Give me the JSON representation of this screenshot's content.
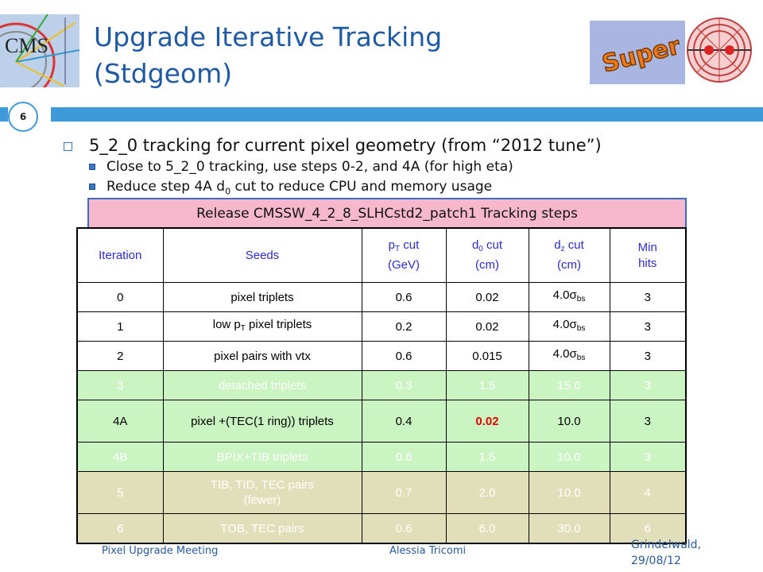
{
  "title": {
    "line1": "Upgrade Iterative Tracking",
    "line2": "(Stdgeom)"
  },
  "logos": {
    "cms_text": "CMS",
    "super_text": "Super"
  },
  "slide_number": "6",
  "bullets": {
    "main": "5_2_0 tracking for current pixel geometry (from “2012 tune”)",
    "sub1": "Close to 5_2_0 tracking, use steps 0-2, and 4A (for high eta)",
    "sub2_pre": "Reduce step 4A d",
    "sub2_sub": "0",
    "sub2_post": " cut to reduce CPU and memory usage"
  },
  "release_banner": "Release CMSSW_4_2_8_SLHCstd2_patch1 Tracking steps",
  "table": {
    "headers": {
      "iteration": "Iteration",
      "seeds": "Seeds",
      "pt_pre": "p",
      "pt_sub": "T",
      "pt_post": " cut",
      "pt_unit": "(GeV)",
      "d0_pre": "d",
      "d0_sub": "0",
      "d0_post": " cut",
      "d0_unit": "(cm)",
      "dz_pre": "d",
      "dz_sub": "z",
      "dz_post": " cut",
      "dz_unit": "(cm)",
      "min": "Min",
      "hits": "hits"
    },
    "rows": [
      {
        "iter": "0",
        "seeds": "pixel triplets",
        "pt": "0.6",
        "d0": "0.02",
        "dz": "4.0σ",
        "dz_sub": "bs",
        "hits": "3"
      },
      {
        "iter": "1",
        "seeds_pre": "low p",
        "seeds_sub": "T",
        "seeds_post": " pixel triplets",
        "pt": "0.2",
        "d0": "0.02",
        "dz": "4.0σ",
        "dz_sub": "bs",
        "hits": "3"
      },
      {
        "iter": "2",
        "seeds": "pixel pairs with vtx",
        "pt": "0.6",
        "d0": "0.015",
        "dz": "4.0σ",
        "dz_sub": "bs",
        "hits": "3"
      },
      {
        "iter": "3",
        "seeds": "detached triplets",
        "pt": "0.3",
        "d0": "1.5",
        "dz": "15.0",
        "hits": "3"
      },
      {
        "iter": "4A",
        "seeds": "pixel +(TEC(1 ring)) triplets",
        "pt": "0.4",
        "d0": "0.02",
        "dz": "10.0",
        "hits": "3"
      },
      {
        "iter": "4B",
        "seeds": "BPIX+TIB triplets",
        "pt": "0.6",
        "d0": "1.5",
        "dz": "10.0",
        "hits": "3"
      },
      {
        "iter": "5",
        "seeds": "TIB, TID, TEC pairs (fewer)",
        "pt": "0.7",
        "d0": "2.0",
        "dz": "10.0",
        "hits": "4"
      },
      {
        "iter": "6",
        "seeds": "TOB, TEC pairs",
        "pt": "0.6",
        "d0": "6.0",
        "dz": "30.0",
        "hits": "6"
      }
    ]
  },
  "footer": {
    "left": "Pixel Upgrade Meeting",
    "center": "Alessia Tricomi",
    "right_line1": "Grindelwald,",
    "right_line2": "29/08/12"
  },
  "colors": {
    "title": "#1f5aa6",
    "accent_bar": "#3e9ad9",
    "banner": "#f7b7cd",
    "green_row": "#caf5c3",
    "tan_row": "#e1dfb9",
    "header_text": "#2b2bd1",
    "highlight": "#e60000"
  }
}
